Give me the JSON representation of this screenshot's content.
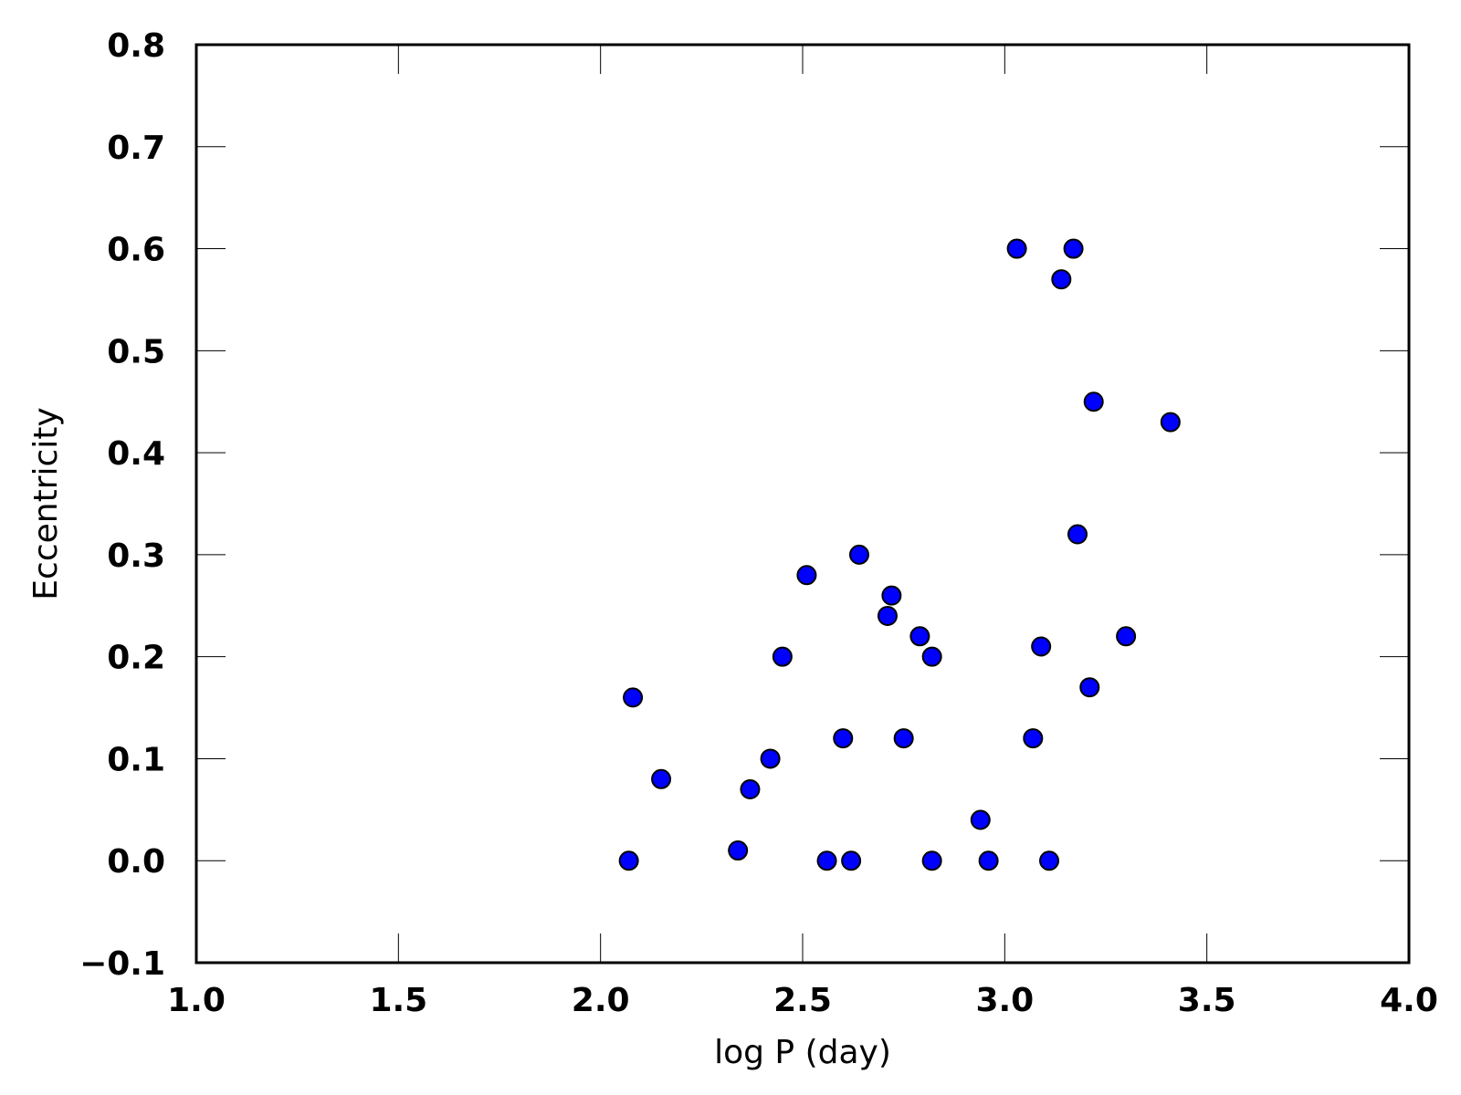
{
  "chart_data": {
    "type": "scatter",
    "title": "",
    "xlabel": "log P (day)",
    "ylabel": "Eccentricity",
    "xlim": [
      1.0,
      4.0
    ],
    "ylim": [
      -0.1,
      0.8
    ],
    "xticks": [
      "1.0",
      "1.5",
      "2.0",
      "2.5",
      "3.0",
      "3.5",
      "4.0"
    ],
    "yticks": [
      "−0.1",
      "0.0",
      "0.1",
      "0.2",
      "0.3",
      "0.4",
      "0.5",
      "0.6",
      "0.7",
      "0.8"
    ],
    "grid": false,
    "legend": "none",
    "marker_color": "#0000ff",
    "marker_edge_color": "#000000",
    "series": [
      {
        "points": [
          [
            2.07,
            0.0
          ],
          [
            2.08,
            0.16
          ],
          [
            2.15,
            0.08
          ],
          [
            2.34,
            0.01
          ],
          [
            2.37,
            0.07
          ],
          [
            2.42,
            0.1
          ],
          [
            2.45,
            0.2
          ],
          [
            2.51,
            0.28
          ],
          [
            2.56,
            0.0
          ],
          [
            2.6,
            0.12
          ],
          [
            2.62,
            0.0
          ],
          [
            2.64,
            0.3
          ],
          [
            2.71,
            0.24
          ],
          [
            2.72,
            0.26
          ],
          [
            2.75,
            0.12
          ],
          [
            2.79,
            0.22
          ],
          [
            2.82,
            0.2
          ],
          [
            2.82,
            0.0
          ],
          [
            2.94,
            0.04
          ],
          [
            2.96,
            0.0
          ],
          [
            3.03,
            0.6
          ],
          [
            3.07,
            0.12
          ],
          [
            3.09,
            0.21
          ],
          [
            3.11,
            0.0
          ],
          [
            3.14,
            0.57
          ],
          [
            3.17,
            0.6
          ],
          [
            3.18,
            0.32
          ],
          [
            3.21,
            0.17
          ],
          [
            3.22,
            0.45
          ],
          [
            3.3,
            0.22
          ],
          [
            3.41,
            0.43
          ]
        ]
      }
    ]
  }
}
